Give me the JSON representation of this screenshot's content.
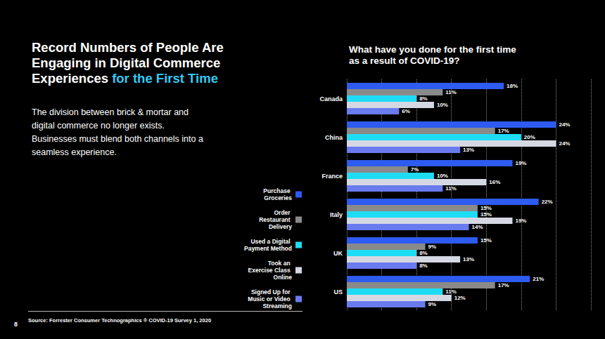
{
  "slide": {
    "headline": "Record Numbers of People Are Engaging in Digital Commerce Experiences",
    "headline_highlight": "for the First Time",
    "body": "The division between brick & mortar and digital commerce no longer exists. Businesses must blend both channels into a seamless experience.",
    "source": "Source: Forrester Consumer Technographics ® COVID-19 Survey 1, 2020",
    "page_number": "8"
  },
  "chart_data": {
    "type": "bar",
    "orientation": "horizontal",
    "title": "What have you done for the first time as a result of COVID-19?",
    "categories": [
      "Canada",
      "China",
      "France",
      "Italy",
      "UK",
      "US"
    ],
    "series": [
      {
        "name": "Purchase Groceries",
        "color": "#2e5bf0",
        "values": [
          18,
          24,
          19,
          22,
          15,
          21
        ],
        "value_labels": [
          "18%",
          "24%",
          "19%",
          "22%",
          "15%",
          "21%"
        ]
      },
      {
        "name": "Order Restaurant Delivery",
        "color": "#8a8a8a",
        "values": [
          11,
          17,
          7,
          15,
          9,
          17
        ],
        "value_labels": [
          "11%",
          "17%",
          "7%",
          "15%",
          "9%",
          "17%"
        ]
      },
      {
        "name": "Used a Digital Payment Method",
        "color": "#1edcf5",
        "values": [
          8,
          20,
          10,
          15,
          8,
          11
        ],
        "value_labels": [
          "8%",
          "20%",
          "10%",
          "15%",
          "8%",
          "11%"
        ]
      },
      {
        "name": "Took an Exercise Class Online",
        "color": "#d5d8e3",
        "values": [
          10,
          24,
          16,
          19,
          13,
          12
        ],
        "value_labels": [
          "10%",
          "24%",
          "16%",
          "19%",
          "13%",
          "12%"
        ]
      },
      {
        "name": "Signed Up for Music or Video Streaming",
        "color": "#6a7bf0",
        "values": [
          6,
          13,
          11,
          14,
          8,
          9
        ],
        "value_labels": [
          "6%",
          "13%",
          "11%",
          "14%",
          "8%",
          "9%"
        ]
      }
    ],
    "xlim": [
      0,
      28
    ],
    "xticks": [
      0,
      4,
      8,
      12,
      16,
      20,
      24,
      28
    ],
    "grid": true,
    "tick_labels": "y",
    "data_labels": true,
    "legend": "left"
  }
}
